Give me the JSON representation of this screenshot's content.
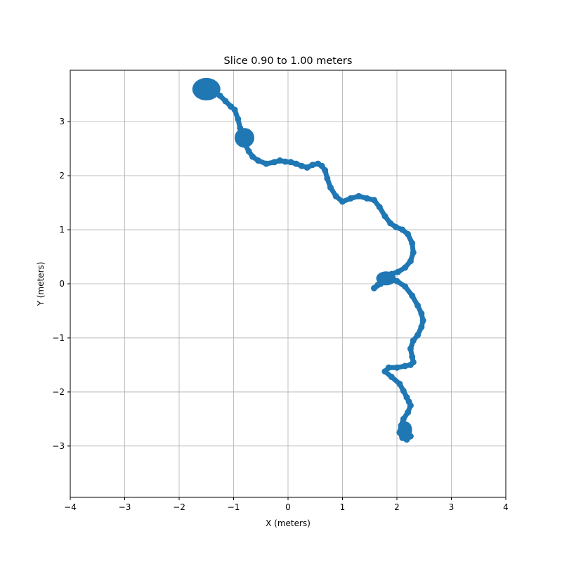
{
  "chart_data": {
    "type": "scatter",
    "title": "Slice 0.90 to 1.00 meters",
    "xlabel": "X (meters)",
    "ylabel": "Y (meters)",
    "xlim": [
      -4,
      4
    ],
    "ylim": [
      -3.95,
      3.95
    ],
    "xticks": [
      -4,
      -3,
      -2,
      -1,
      0,
      1,
      2,
      3,
      4
    ],
    "yticks": [
      -3,
      -2,
      -1,
      0,
      1,
      2,
      3
    ],
    "xtick_labels": [
      "−4",
      "−3",
      "−2",
      "−1",
      "0",
      "1",
      "2",
      "3",
      "4"
    ],
    "ytick_labels": [
      "−3",
      "−2",
      "−1",
      "0",
      "1",
      "2",
      "3"
    ],
    "grid": true,
    "color": "#1f77b4",
    "series": [
      {
        "x": [
          -1.55,
          -1.45,
          -1.35,
          -1.25,
          -1.15,
          -1.05,
          -0.98,
          -0.92,
          -0.88,
          -0.85,
          -0.8,
          -0.72,
          -0.65,
          -0.55,
          -0.4,
          -0.25,
          -0.15,
          -0.05,
          0.05,
          0.15,
          0.25,
          0.35,
          0.45,
          0.55,
          0.62,
          0.68,
          0.72,
          0.78,
          0.88,
          1.0,
          1.15,
          1.3,
          1.45,
          1.58,
          1.68,
          1.78,
          1.88,
          1.98,
          2.1,
          2.2,
          2.28,
          2.3,
          2.25,
          2.15,
          2.02,
          1.9,
          1.8,
          1.72,
          1.65,
          1.58,
          1.7,
          1.85,
          2.0,
          2.15,
          2.28,
          2.38,
          2.45,
          2.48,
          2.45,
          2.38,
          2.3,
          2.25,
          2.28,
          2.3,
          2.25,
          2.15,
          2.0,
          1.85,
          1.78,
          1.9,
          2.05,
          2.12,
          2.18,
          2.22,
          2.25,
          2.2,
          2.12,
          2.08,
          2.05,
          2.1,
          2.18,
          2.25
        ],
        "y": [
          3.68,
          3.62,
          3.55,
          3.48,
          3.38,
          3.28,
          3.22,
          3.05,
          2.88,
          2.72,
          2.6,
          2.45,
          2.35,
          2.28,
          2.22,
          2.25,
          2.28,
          2.26,
          2.25,
          2.22,
          2.18,
          2.15,
          2.2,
          2.22,
          2.18,
          2.1,
          1.95,
          1.78,
          1.62,
          1.52,
          1.58,
          1.62,
          1.58,
          1.55,
          1.42,
          1.25,
          1.12,
          1.05,
          1.0,
          0.92,
          0.75,
          0.58,
          0.42,
          0.3,
          0.22,
          0.18,
          0.12,
          0.05,
          -0.02,
          -0.08,
          0.0,
          0.08,
          0.05,
          -0.05,
          -0.22,
          -0.4,
          -0.55,
          -0.68,
          -0.8,
          -0.95,
          -1.05,
          -1.2,
          -1.35,
          -1.45,
          -1.5,
          -1.52,
          -1.55,
          -1.55,
          -1.62,
          -1.72,
          -1.85,
          -1.98,
          -2.1,
          -2.18,
          -2.25,
          -2.38,
          -2.5,
          -2.62,
          -2.75,
          -2.85,
          -2.88,
          -2.82
        ]
      }
    ]
  }
}
